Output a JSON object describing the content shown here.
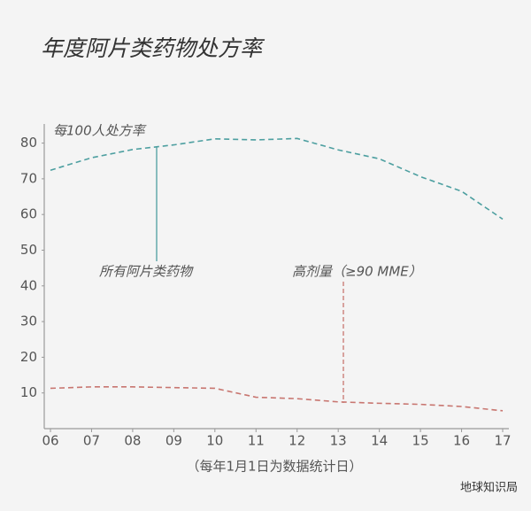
{
  "chart_data": {
    "type": "line",
    "title": "年度阿片类药物处方率",
    "y_label": "每100人处方率",
    "x_label": "（每年1月1日为数据统计日）",
    "source": "地球知识局",
    "categories": [
      "06",
      "07",
      "08",
      "09",
      "10",
      "11",
      "12",
      "13",
      "14",
      "15",
      "16",
      "17"
    ],
    "series": [
      {
        "name": "所有阿片类药物",
        "color": "#4d9fa0",
        "values": [
          72.4,
          75.9,
          78.2,
          79.5,
          81.2,
          80.9,
          81.3,
          78.1,
          75.6,
          70.6,
          66.5,
          58.7
        ]
      },
      {
        "name": "高剂量（≥90 MME）",
        "color": "#c87670",
        "values": [
          11.3,
          11.7,
          11.7,
          11.5,
          11.3,
          8.8,
          8.4,
          7.5,
          7.1,
          6.8,
          6.2,
          5.0
        ]
      }
    ],
    "ylim": [
      0,
      83
    ],
    "yticks": [
      10,
      20,
      30,
      40,
      50,
      60,
      70,
      80
    ],
    "grid": false
  }
}
